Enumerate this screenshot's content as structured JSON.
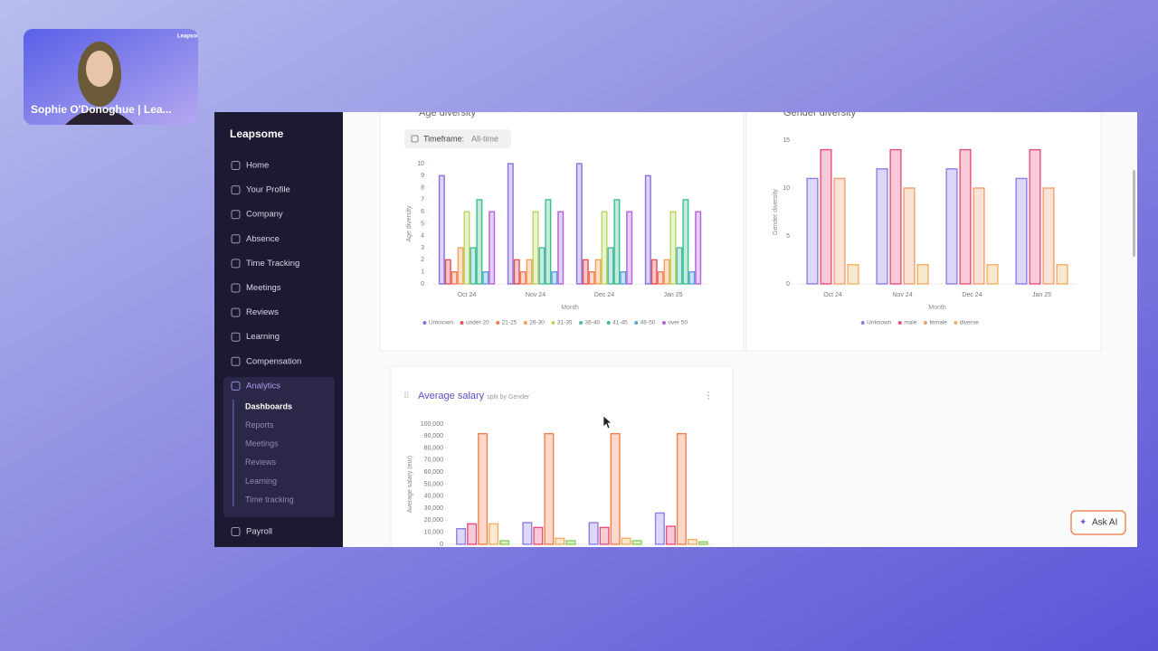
{
  "video": {
    "brand": "Leapsome",
    "name": "Sophie O'Donoghue | Lea..."
  },
  "sidebar": {
    "brand": "Leapsome",
    "items": [
      "Home",
      "Your Profile",
      "Company",
      "Absence",
      "Time Tracking",
      "Meetings",
      "Reviews",
      "Learning",
      "Compensation",
      "Analytics"
    ],
    "analytics_items": [
      "Dashboards",
      "Reports",
      "Meetings",
      "Reviews",
      "Learning",
      "Time tracking"
    ],
    "footer_items": [
      "Payroll"
    ]
  },
  "filter": {
    "label": "Timeframe:",
    "value": "All-time"
  },
  "ask_ai": "Ask AI",
  "chart_data": [
    {
      "type": "bar",
      "title": "Age diversity",
      "ylabel": "Age diversity",
      "xlabel": "Month",
      "categories": [
        "Oct 24",
        "Nov 24",
        "Dec 24",
        "Jan 25"
      ],
      "series": [
        {
          "name": "Unknown",
          "color": "#8b6fe0",
          "values": [
            9,
            10,
            10,
            9
          ]
        },
        {
          "name": "under 20",
          "color": "#e0505a",
          "values": [
            2,
            2,
            2,
            2
          ]
        },
        {
          "name": "21-25",
          "color": "#f07a5a",
          "values": [
            1,
            1,
            1,
            1
          ]
        },
        {
          "name": "26-30",
          "color": "#f4a05a",
          "values": [
            3,
            2,
            2,
            2
          ]
        },
        {
          "name": "31-35",
          "color": "#b8d860",
          "values": [
            6,
            6,
            6,
            6
          ]
        },
        {
          "name": "36-40",
          "color": "#4fb8a8",
          "values": [
            3,
            3,
            3,
            3
          ]
        },
        {
          "name": "41-45",
          "color": "#3cc08a",
          "values": [
            7,
            7,
            7,
            7
          ]
        },
        {
          "name": "46-50",
          "color": "#5aa0e0",
          "values": [
            1,
            1,
            1,
            1
          ]
        },
        {
          "name": "over 50",
          "color": "#b060e0",
          "values": [
            6,
            6,
            6,
            6
          ]
        }
      ],
      "ylim": [
        0,
        10
      ],
      "yticks": [
        0,
        1,
        2,
        3,
        4,
        5,
        6,
        7,
        8,
        9,
        10
      ],
      "legend": "bottom",
      "grid": false
    },
    {
      "type": "bar",
      "title": "Gender diversity",
      "ylabel": "Gender diversity",
      "xlabel": "Month",
      "categories": [
        "Oct 24",
        "Nov 24",
        "Dec 24",
        "Jan 25"
      ],
      "series": [
        {
          "name": "Unknown",
          "color": "#8f7ee6",
          "values": [
            11,
            12,
            12,
            11
          ]
        },
        {
          "name": "male",
          "color": "#e8507a",
          "values": [
            14,
            14,
            14,
            14
          ]
        },
        {
          "name": "female",
          "color": "#f0a070",
          "values": [
            11,
            10,
            10,
            10
          ]
        },
        {
          "name": "diverse",
          "color": "#f0b060",
          "values": [
            2,
            2,
            2,
            2
          ]
        }
      ],
      "ylim": [
        0,
        15
      ],
      "yticks": [
        0,
        5,
        10,
        15
      ],
      "legend": "bottom",
      "grid": false
    },
    {
      "type": "bar",
      "title": "Average salary",
      "subtitle": "split by Gender",
      "ylabel": "Average salary (eur)",
      "series": [
        {
          "color": "#8f7ee6",
          "values": [
            13000,
            18000,
            18000,
            26000
          ]
        },
        {
          "color": "#e8507a",
          "values": [
            17000,
            14000,
            14000,
            15000
          ]
        },
        {
          "color": "#f08050",
          "values": [
            92000,
            92000,
            92000,
            92000
          ]
        },
        {
          "color": "#f0b060",
          "values": [
            17000,
            5000,
            5000,
            4000
          ]
        },
        {
          "color": "#90cc60",
          "values": [
            3000,
            3000,
            3000,
            2000
          ]
        }
      ],
      "ylim": [
        0,
        100000
      ],
      "yticks": [
        0,
        {
          "value": 10000,
          "label": "10,000"
        },
        {
          "value": 20000,
          "label": "20,000"
        },
        {
          "value": 30000,
          "label": "30,000"
        },
        {
          "value": 40000,
          "label": "40,000"
        },
        {
          "value": 50000,
          "label": "50,000"
        },
        {
          "value": 60000,
          "label": "60,000"
        },
        {
          "value": 70000,
          "label": "70,000"
        },
        {
          "value": 80000,
          "label": "80,000"
        },
        {
          "value": 90000,
          "label": "90,000"
        },
        {
          "value": 100000,
          "label": "100,000"
        }
      ],
      "grid": false
    }
  ]
}
